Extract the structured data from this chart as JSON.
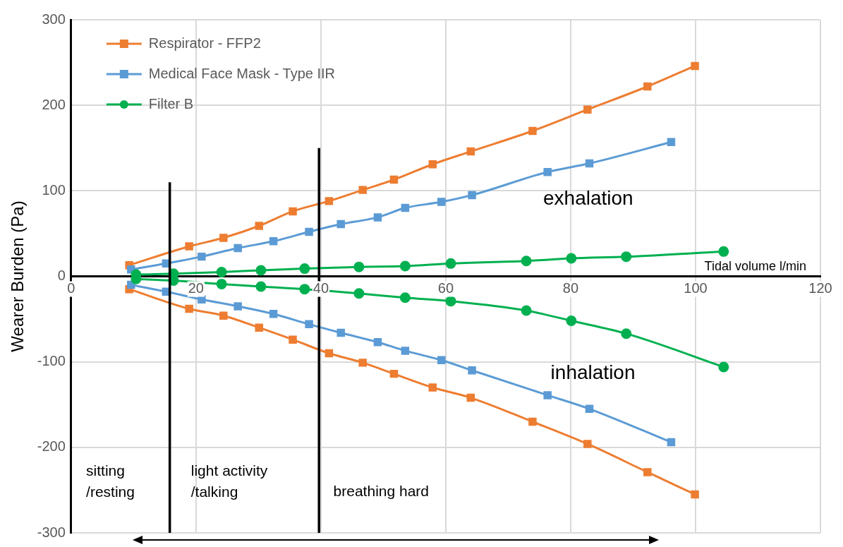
{
  "chart_data": {
    "type": "line",
    "ylabel": "Wearer Burden (Pa)",
    "xlabel": "Tidal volume l/min",
    "xlim": [
      0,
      120
    ],
    "xticks": [
      0,
      20,
      40,
      60,
      80,
      100,
      120
    ],
    "ylim": [
      -300,
      300
    ],
    "yticks": [
      -300,
      -200,
      -100,
      0,
      100,
      200,
      300
    ],
    "grid": true,
    "legend": "top left",
    "line_style": "solid",
    "series": [
      {
        "name": "Respirator - FFP2",
        "color": "#ed7d31",
        "marker": "square",
        "x": [
          9.3,
          18.9,
          24.4,
          30.1,
          35.5,
          41.3,
          46.7,
          51.7,
          57.9,
          64,
          73.9,
          82.7,
          92.3,
          99.9
        ],
        "values": [
          13,
          35,
          45,
          59,
          76,
          88,
          101,
          113,
          131,
          146,
          170,
          195,
          222,
          246
        ]
      },
      {
        "name": "Medical Face Mask - Type IIR",
        "color": "#5b9bd5",
        "marker": "square",
        "x": [
          9.6,
          15.2,
          20.9,
          26.7,
          32.4,
          38.1,
          43.2,
          49.1,
          53.5,
          59.3,
          64.2,
          76.3,
          83,
          96.1
        ],
        "values": [
          8,
          15,
          23,
          33,
          41,
          52,
          61,
          69,
          80,
          87,
          95,
          122,
          132,
          157
        ]
      },
      {
        "name": "Filter B",
        "color": "#00b050",
        "marker": "circle",
        "x": [
          10.4,
          16.4,
          24.1,
          30.4,
          37.4,
          46.1,
          53.5,
          60.8,
          72.9,
          80.1,
          88.9,
          104.5
        ],
        "values": [
          2,
          3,
          5,
          7,
          9,
          11,
          12,
          15,
          18,
          21,
          23,
          29
        ]
      },
      {
        "color": "#ed7d31",
        "marker": "square",
        "x": [
          9.3,
          18.9,
          24.4,
          30.1,
          35.5,
          41.3,
          46.7,
          51.7,
          57.9,
          64,
          73.9,
          82.7,
          92.3,
          99.9
        ],
        "values": [
          -15,
          -38,
          -46,
          -60,
          -74,
          -90,
          -101,
          -114,
          -130,
          -142,
          -170,
          -196,
          -229,
          -255
        ]
      },
      {
        "color": "#5b9bd5",
        "marker": "square",
        "x": [
          9.6,
          15.2,
          20.9,
          26.7,
          32.4,
          38.1,
          43.2,
          49.1,
          53.5,
          59.3,
          64.2,
          76.3,
          83,
          96.1
        ],
        "values": [
          -10,
          -18,
          -27,
          -35,
          -44,
          -56,
          -66,
          -77,
          -87,
          -98,
          -110,
          -139,
          -155,
          -194
        ]
      },
      {
        "color": "#00b050",
        "marker": "circle",
        "x": [
          10.4,
          16.4,
          24.1,
          30.4,
          37.4,
          46.1,
          53.5,
          60.8,
          72.9,
          80.1,
          88.9,
          104.5
        ],
        "values": [
          -3,
          -5,
          -9,
          -12,
          -15,
          -20,
          -25,
          -29,
          -40,
          -52,
          -67,
          -106
        ]
      },
      {
        "color": "#000000",
        "marker": "none",
        "x": [
          15.8,
          15.8
        ],
        "values": [
          -300,
          110
        ]
      },
      {
        "color": "#000000",
        "marker": "none",
        "x": [
          39.7,
          39.7
        ],
        "values": [
          -300,
          150
        ]
      }
    ],
    "annotations": [
      "exhalation",
      "inhalation",
      "sitting\n/resting",
      "light activity\n/talking",
      "breathing hard"
    ]
  }
}
